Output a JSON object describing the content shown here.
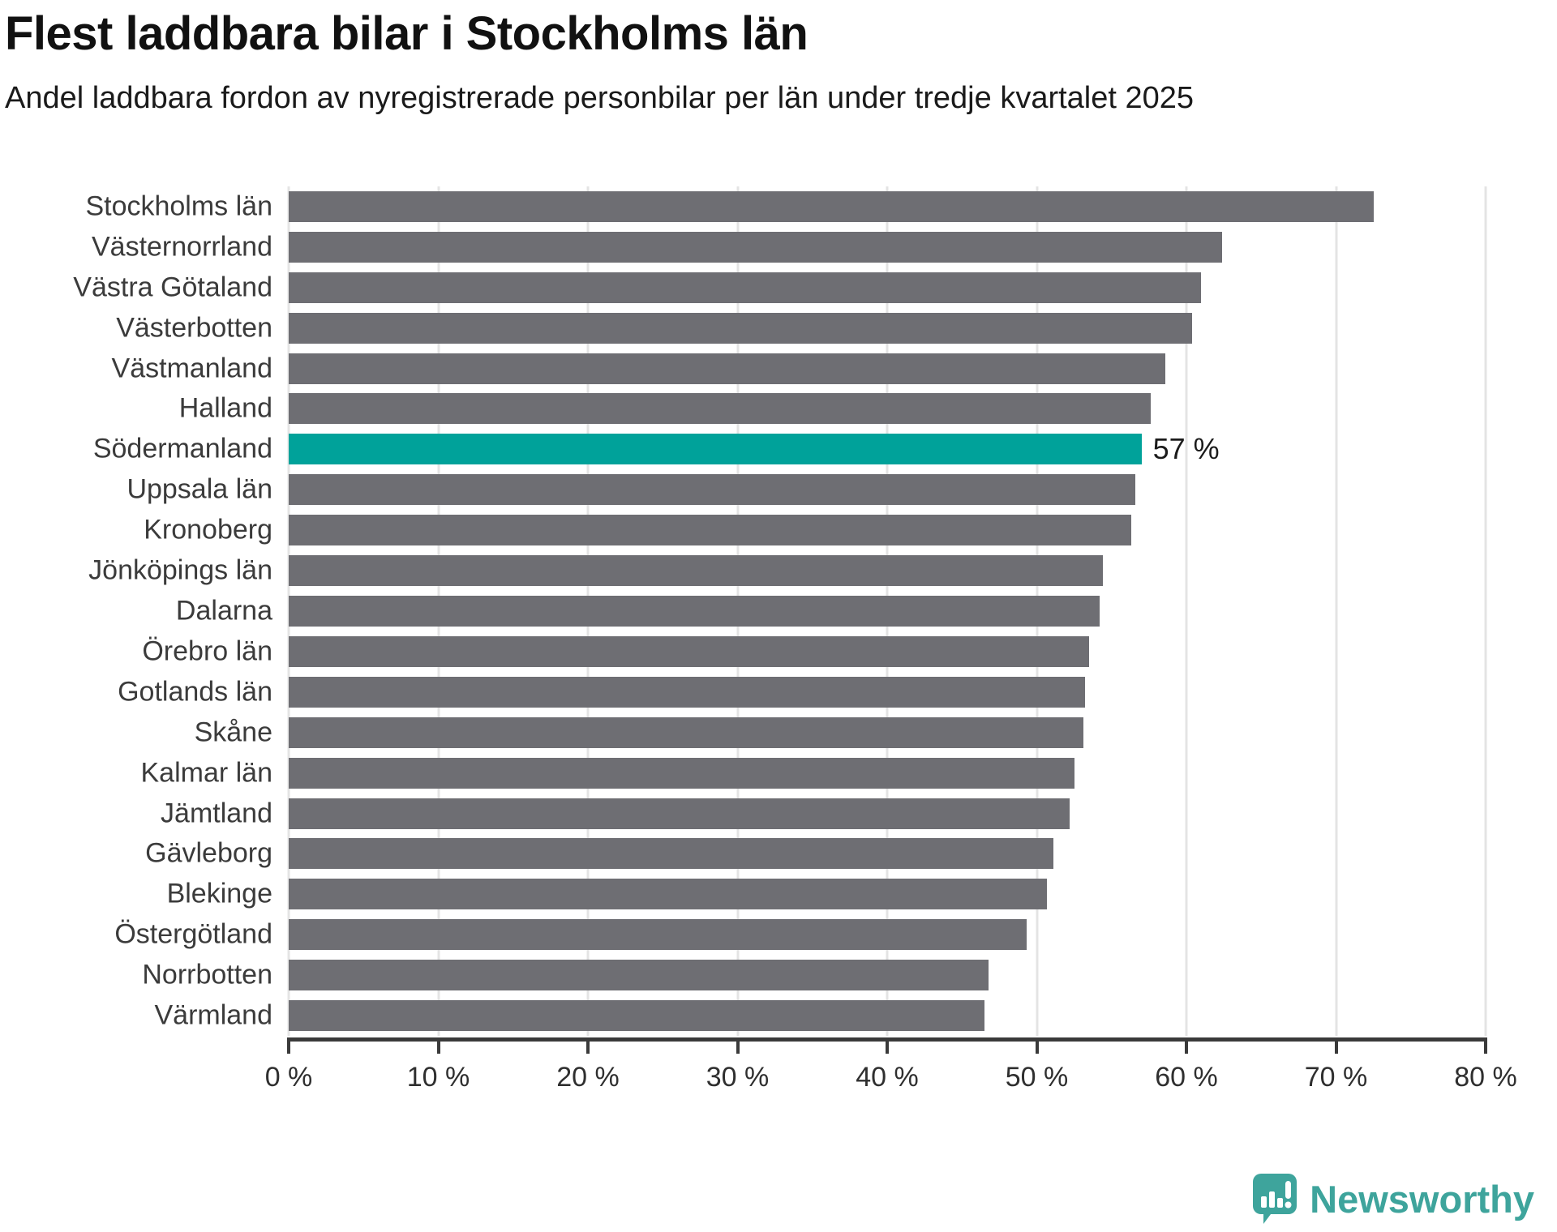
{
  "header": {
    "title": "Flest laddbara bilar i Stockholms län",
    "subtitle": "Andel laddbara fordon av nyregistrerade personbilar per län under tredje kvartalet 2025"
  },
  "chart_data": {
    "type": "bar",
    "orientation": "horizontal",
    "title": "Flest laddbara bilar i Stockholms län",
    "subtitle": "Andel laddbara fordon av nyregistrerade personbilar per län under tredje kvartalet 2025",
    "xlabel": "",
    "ylabel": "",
    "xlim": [
      0,
      80
    ],
    "grid": true,
    "categories": [
      "Stockholms län",
      "Västernorrland",
      "Västra Götaland",
      "Västerbotten",
      "Västmanland",
      "Halland",
      "Södermanland",
      "Uppsala län",
      "Kronoberg",
      "Jönköpings län",
      "Dalarna",
      "Örebro län",
      "Gotlands län",
      "Skåne",
      "Kalmar län",
      "Jämtland",
      "Gävleborg",
      "Blekinge",
      "Östergötland",
      "Norrbotten",
      "Värmland"
    ],
    "values": [
      72.5,
      62.4,
      61.0,
      60.4,
      58.6,
      57.6,
      57.0,
      56.6,
      56.3,
      54.4,
      54.2,
      53.5,
      53.2,
      53.1,
      52.5,
      52.2,
      51.1,
      50.7,
      49.3,
      46.8,
      46.5
    ],
    "unit": "%",
    "highlight": {
      "category": "Södermanland",
      "index": 6,
      "label": "57 %"
    },
    "x_tick_values": [
      0,
      10,
      20,
      30,
      40,
      50,
      60,
      70,
      80
    ],
    "x_tick_labels": [
      "0 %",
      "10 %",
      "20 %",
      "30 %",
      "40 %",
      "50 %",
      "60 %",
      "70 %",
      "80 %"
    ],
    "colors": {
      "bar": "#6e6e73",
      "highlight": "#00a29a",
      "grid": "#e4e4e4",
      "axis": "#3a3a3a"
    },
    "legend": null
  },
  "branding": {
    "logo_text": "Newsworthy",
    "logo_color": "#3ea49c",
    "logo_icon": "speech-bubble-bar-chart-icon"
  }
}
